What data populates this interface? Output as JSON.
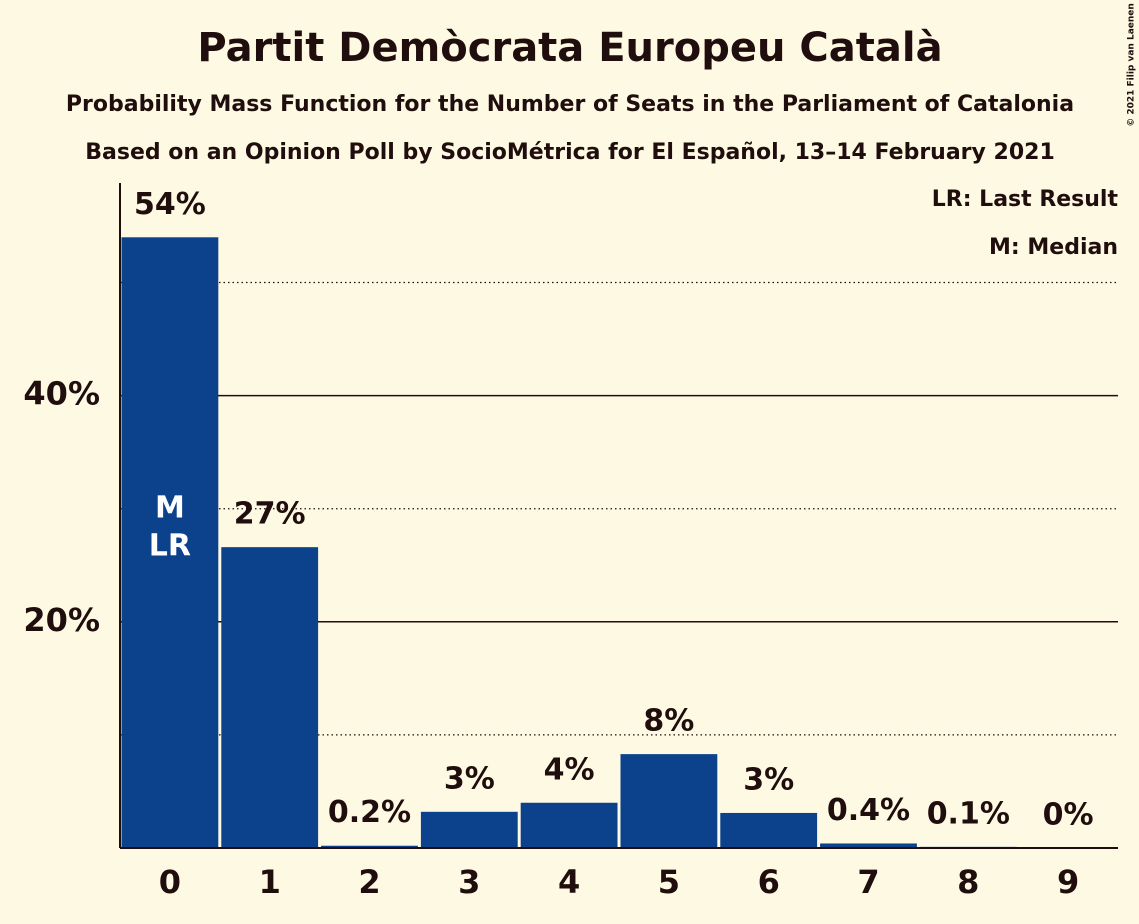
{
  "chart_data": {
    "type": "bar",
    "title": "Partit Demòcrata Europeu Català",
    "subtitle": "Probability Mass Function for the Number of Seats in the Parliament of Catalonia",
    "subtitle2": "Based on an Opinion Poll by SocioMétrica for El Español, 13–14 February 2021",
    "copyright": "© 2021 Filip van Laenen",
    "legend": [
      "LR: Last Result",
      "M: Median"
    ],
    "categories": [
      "0",
      "1",
      "2",
      "3",
      "4",
      "5",
      "6",
      "7",
      "8",
      "9"
    ],
    "values": [
      54,
      26.6,
      0.2,
      3.2,
      4.0,
      8.3,
      3.1,
      0.4,
      0.1,
      0
    ],
    "value_labels": [
      "54%",
      "27%",
      "0.2%",
      "3%",
      "4%",
      "8%",
      "3%",
      "0.4%",
      "0.1%",
      "0%"
    ],
    "color": "#0c418b",
    "ylim": [
      0,
      58.8
    ],
    "yticks": [
      {
        "value": 20,
        "label": "20%"
      },
      {
        "value": 40,
        "label": "40%"
      }
    ],
    "minor_yticks": [
      10,
      30,
      50
    ],
    "grid": true,
    "markers": [
      {
        "index": 0,
        "label": "M"
      },
      {
        "index": 0,
        "label": "LR"
      }
    ]
  }
}
